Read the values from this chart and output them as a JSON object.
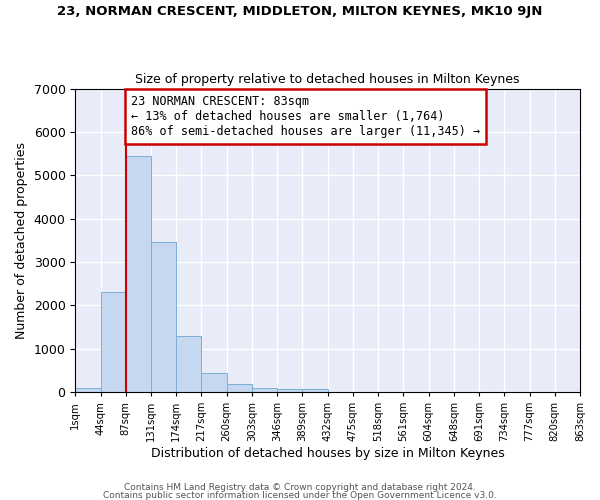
{
  "title": "23, NORMAN CRESCENT, MIDDLETON, MILTON KEYNES, MK10 9JN",
  "subtitle": "Size of property relative to detached houses in Milton Keynes",
  "xlabel": "Distribution of detached houses by size in Milton Keynes",
  "ylabel": "Number of detached properties",
  "bar_values": [
    100,
    2300,
    5450,
    3450,
    1300,
    450,
    175,
    100,
    75,
    75,
    0,
    0,
    0,
    0,
    0,
    0,
    0,
    0,
    0,
    0
  ],
  "x_labels": [
    "1sqm",
    "44sqm",
    "87sqm",
    "131sqm",
    "174sqm",
    "217sqm",
    "260sqm",
    "303sqm",
    "346sqm",
    "389sqm",
    "432sqm",
    "475sqm",
    "518sqm",
    "561sqm",
    "604sqm",
    "648sqm",
    "691sqm",
    "734sqm",
    "777sqm",
    "820sqm",
    "863sqm"
  ],
  "bar_color": "#c5d8ef",
  "bar_edge_color": "#7bafd4",
  "background_color": "#e8ecf8",
  "grid_color": "#ffffff",
  "red_line_bin": 2,
  "annotation_text": "23 NORMAN CRESCENT: 83sqm\n← 13% of detached houses are smaller (1,764)\n86% of semi-detached houses are larger (11,345) →",
  "annotation_box_color": "#ffffff",
  "annotation_box_edge_color": "#cc0000",
  "ylim": [
    0,
    7000
  ],
  "yticks": [
    0,
    1000,
    2000,
    3000,
    4000,
    5000,
    6000,
    7000
  ],
  "footer_line1": "Contains HM Land Registry data © Crown copyright and database right 2024.",
  "footer_line2": "Contains public sector information licensed under the Open Government Licence v3.0."
}
